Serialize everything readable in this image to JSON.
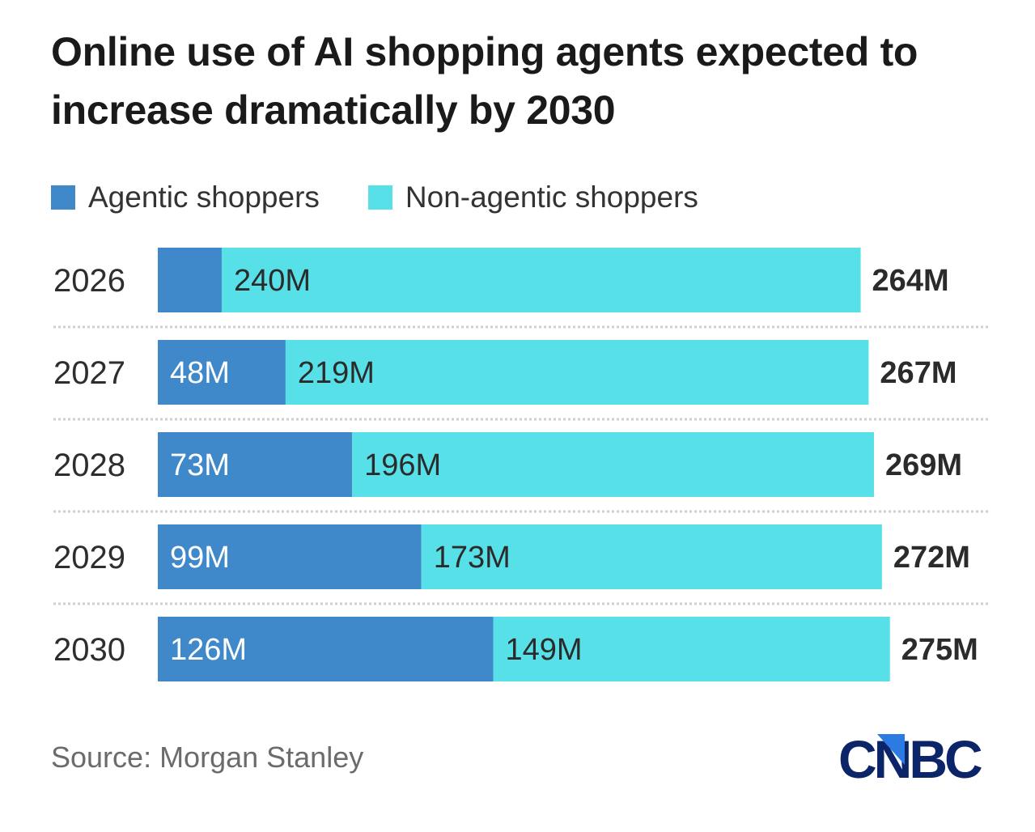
{
  "header": {
    "title": "Online use of AI shopping agents expected to increase dramatically by 2030"
  },
  "legend": [
    {
      "label": "Agentic shoppers",
      "color": "#3f88c9"
    },
    {
      "label": "Non-agentic shoppers",
      "color": "#58e0e8"
    }
  ],
  "footer": {
    "source": "Source: Morgan Stanley",
    "logo_text": "CNBC",
    "logo_color": "#0b2568",
    "logo_accent_color": "#2b7be3"
  },
  "chart_data": {
    "type": "bar",
    "orientation": "horizontal",
    "stacked": true,
    "title": "Online use of AI shopping agents expected to increase dramatically by 2030",
    "xlabel": "",
    "ylabel": "",
    "units": "M",
    "grid": false,
    "legend_position": "top-left",
    "categories": [
      "2026",
      "2027",
      "2028",
      "2029",
      "2030"
    ],
    "series": [
      {
        "name": "Agentic shoppers",
        "color": "#3f88c9",
        "values": [
          24,
          48,
          73,
          99,
          126
        ],
        "labels": [
          "",
          "48M",
          "73M",
          "99M",
          "126M"
        ]
      },
      {
        "name": "Non-agentic shoppers",
        "color": "#58e0e8",
        "values": [
          240,
          219,
          196,
          173,
          149
        ],
        "labels": [
          "240M",
          "219M",
          "196M",
          "173M",
          "149M"
        ]
      }
    ],
    "totals": [
      264,
      267,
      269,
      272,
      275
    ],
    "total_labels": [
      "264M",
      "267M",
      "269M",
      "272M",
      "275M"
    ],
    "xlim": [
      0,
      275
    ]
  }
}
